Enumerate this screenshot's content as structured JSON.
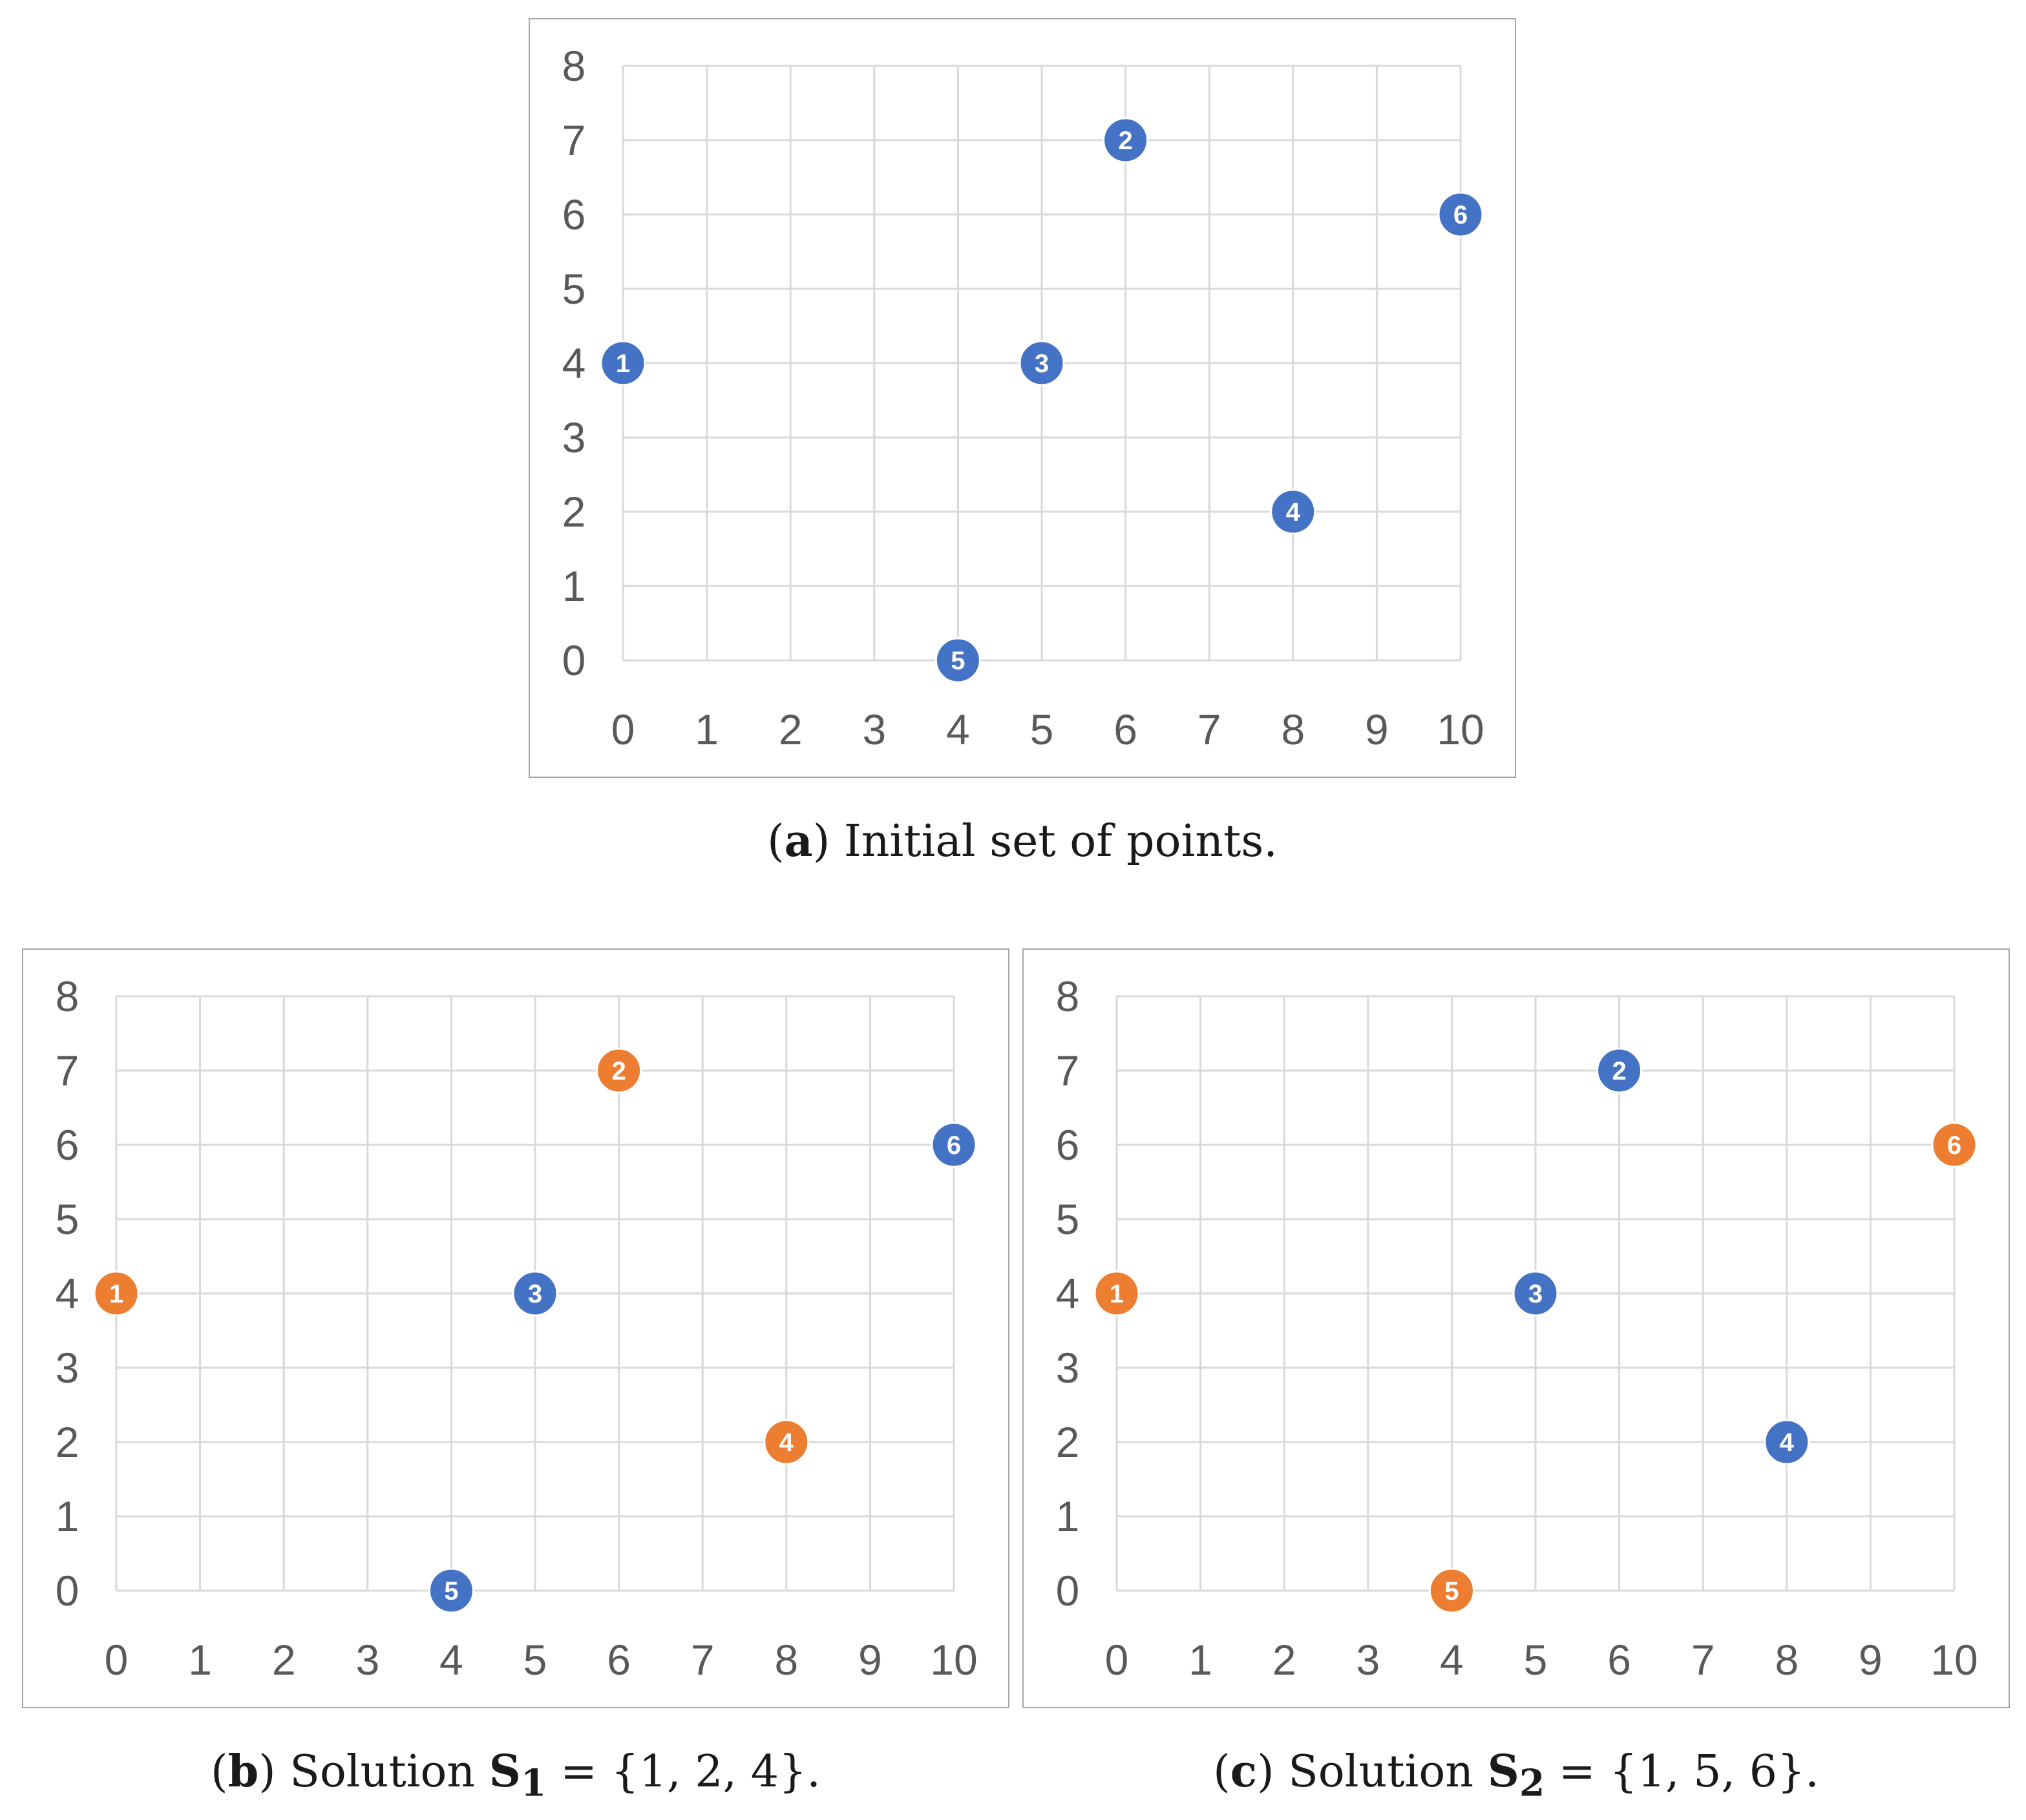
{
  "colors": {
    "unselected": "#4472c4",
    "selected": "#ed7d31",
    "grid": "#d9d9d9",
    "tick": "#595959"
  },
  "chart_data": [
    {
      "id": "a",
      "type": "scatter",
      "xlim": [
        0,
        10
      ],
      "ylim": [
        0,
        8
      ],
      "xticks": [
        "0",
        "1",
        "2",
        "3",
        "4",
        "5",
        "6",
        "7",
        "8",
        "9",
        "10"
      ],
      "yticks": [
        "0",
        "1",
        "2",
        "3",
        "4",
        "5",
        "6",
        "7",
        "8"
      ],
      "grid": true,
      "points": [
        {
          "label": "1",
          "x": 0,
          "y": 4,
          "selected": false
        },
        {
          "label": "2",
          "x": 6,
          "y": 7,
          "selected": false
        },
        {
          "label": "3",
          "x": 5,
          "y": 4,
          "selected": false
        },
        {
          "label": "4",
          "x": 8,
          "y": 2,
          "selected": false
        },
        {
          "label": "5",
          "x": 4,
          "y": 0,
          "selected": false
        },
        {
          "label": "6",
          "x": 10,
          "y": 6,
          "selected": false
        }
      ],
      "caption": {
        "letter": "a",
        "text": "Initial set of points."
      }
    },
    {
      "id": "b",
      "type": "scatter",
      "xlim": [
        0,
        10
      ],
      "ylim": [
        0,
        8
      ],
      "xticks": [
        "0",
        "1",
        "2",
        "3",
        "4",
        "5",
        "6",
        "7",
        "8",
        "9",
        "10"
      ],
      "yticks": [
        "0",
        "1",
        "2",
        "3",
        "4",
        "5",
        "6",
        "7",
        "8"
      ],
      "grid": true,
      "points": [
        {
          "label": "1",
          "x": 0,
          "y": 4,
          "selected": true
        },
        {
          "label": "2",
          "x": 6,
          "y": 7,
          "selected": true
        },
        {
          "label": "3",
          "x": 5,
          "y": 4,
          "selected": false
        },
        {
          "label": "4",
          "x": 8,
          "y": 2,
          "selected": true
        },
        {
          "label": "5",
          "x": 4,
          "y": 0,
          "selected": false
        },
        {
          "label": "6",
          "x": 10,
          "y": 6,
          "selected": false
        }
      ],
      "caption": {
        "letter": "b",
        "prefix": "Solution",
        "symbol": "S",
        "subscript": "1",
        "set": "= {1, 2, 4}."
      }
    },
    {
      "id": "c",
      "type": "scatter",
      "xlim": [
        0,
        10
      ],
      "ylim": [
        0,
        8
      ],
      "xticks": [
        "0",
        "1",
        "2",
        "3",
        "4",
        "5",
        "6",
        "7",
        "8",
        "9",
        "10"
      ],
      "yticks": [
        "0",
        "1",
        "2",
        "3",
        "4",
        "5",
        "6",
        "7",
        "8"
      ],
      "grid": true,
      "points": [
        {
          "label": "1",
          "x": 0,
          "y": 4,
          "selected": true
        },
        {
          "label": "2",
          "x": 6,
          "y": 7,
          "selected": false
        },
        {
          "label": "3",
          "x": 5,
          "y": 4,
          "selected": false
        },
        {
          "label": "4",
          "x": 8,
          "y": 2,
          "selected": false
        },
        {
          "label": "5",
          "x": 4,
          "y": 0,
          "selected": true
        },
        {
          "label": "6",
          "x": 10,
          "y": 6,
          "selected": true
        }
      ],
      "caption": {
        "letter": "c",
        "prefix": "Solution",
        "symbol": "S",
        "subscript": "2",
        "set": "= {1, 5, 6}."
      }
    }
  ]
}
